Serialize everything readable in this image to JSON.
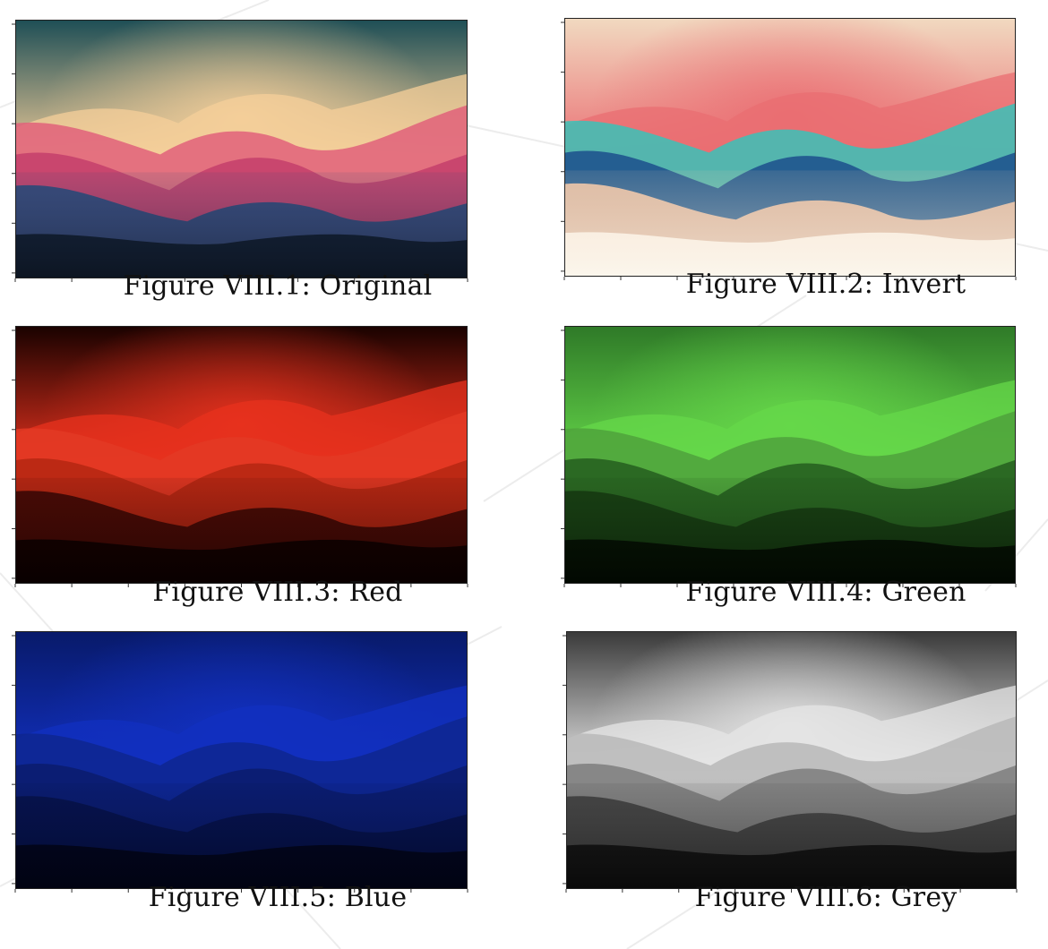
{
  "figures": [
    {
      "label": "Figure VIII.1: Original",
      "filter": "original",
      "colors": {
        "sky_top": "#1f4f56",
        "sky_glow": "#f5cf9a",
        "ridge_warm": "#e0607a",
        "ridge_mid": "#c43e6b",
        "ridge_cool": "#2a4a7a",
        "foreground": "#0d1522"
      }
    },
    {
      "label": "Figure VIII.2: Invert",
      "filter": "invert",
      "colors": {
        "sky_top": "#f1d9c0",
        "sky_glow": "#ea6d72",
        "ridge_warm": "#3ac2b8",
        "ridge_mid": "#1c4f8c",
        "ridge_cool": "#f0c6a8",
        "foreground": "#fbf6ec"
      }
    },
    {
      "label": "Figure VIII.3: Red",
      "filter": "red",
      "colors": {
        "sky_top": "#1a0200",
        "sky_glow": "#e8321e",
        "ridge_warm": "#e33a24",
        "ridge_mid": "#b52712",
        "ridge_cool": "#3a0804",
        "foreground": "#090000"
      }
    },
    {
      "label": "Figure VIII.4: Green",
      "filter": "green",
      "colors": {
        "sky_top": "#2f7a28",
        "sky_glow": "#66d84a",
        "ridge_warm": "#4fa23c",
        "ridge_mid": "#245e1e",
        "ridge_cool": "#163a12",
        "foreground": "#020801"
      }
    },
    {
      "label": "Figure VIII.5: Blue",
      "filter": "blue",
      "colors": {
        "sky_top": "#081a6a",
        "sky_glow": "#1230c0",
        "ridge_warm": "#0e268f",
        "ridge_mid": "#0a1c6c",
        "ridge_cool": "#061248",
        "foreground": "#010312"
      }
    },
    {
      "label": "Figure VIII.6: Grey",
      "filter": "grey",
      "colors": {
        "sky_top": "#3a3a3a",
        "sky_glow": "#e6e6e6",
        "ridge_warm": "#b9b9b9",
        "ridge_mid": "#7c7c7c",
        "ridge_cool": "#3e3e3e",
        "foreground": "#0a0a0a"
      }
    }
  ]
}
